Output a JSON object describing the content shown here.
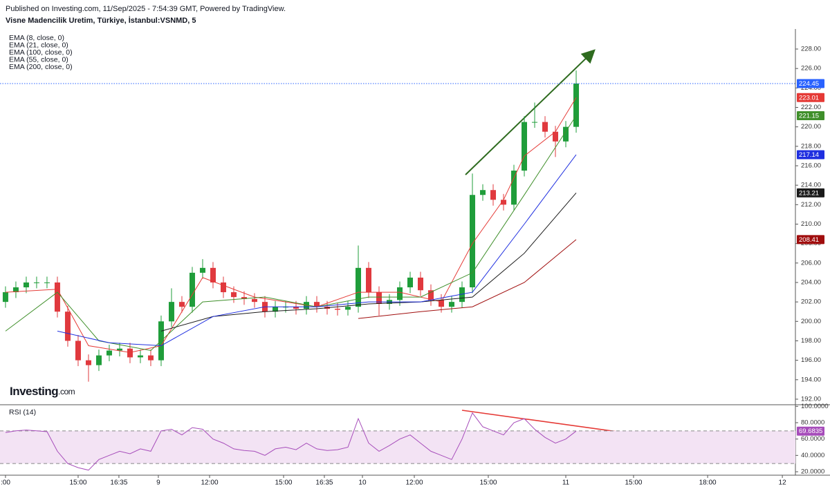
{
  "header": {
    "published": "Published on Investing.com, 11/Sep/2025 - 7:54:39 GMT, Powered by TradingView."
  },
  "chart_data": [
    {
      "type": "candlestick",
      "title": "Visne Madencilik Uretim, Türkiye, İstanbul:VSNMD, 5",
      "logo": "Investing",
      "logo_suffix": ".com",
      "up_color": "#1f9d3a",
      "down_color": "#e0393e",
      "x": [
        0,
        1,
        2,
        3,
        4,
        5,
        6,
        7,
        8,
        9,
        10,
        11,
        12,
        13,
        14,
        15,
        16,
        17,
        18,
        19,
        20,
        21,
        22,
        23,
        24,
        25,
        26,
        27,
        28,
        29,
        30,
        31,
        32,
        33,
        34,
        35,
        36,
        37,
        38,
        39,
        40,
        41,
        42,
        43,
        44,
        45,
        46,
        47,
        48,
        49,
        50,
        51,
        52,
        53,
        54,
        55
      ],
      "open": [
        202,
        203,
        203.5,
        204,
        204,
        204,
        201,
        198,
        196,
        195.5,
        196.5,
        197,
        197.2,
        196.3,
        196.5,
        196,
        200,
        202,
        201.5,
        205,
        205.5,
        204,
        203,
        202.5,
        202.3,
        202,
        201,
        201.5,
        201.5,
        201.3,
        202,
        201.5,
        201.3,
        201.2,
        201.5,
        205.5,
        203,
        201.8,
        202.2,
        203.5,
        204.5,
        203.2,
        202.2,
        201.5,
        202,
        203.5,
        213,
        213.5,
        212.5,
        212,
        215.5,
        220.5,
        220.5,
        219.5,
        218.5,
        220
      ],
      "high": [
        203.6,
        204.1,
        204.6,
        204.6,
        204.6,
        204.6,
        201.6,
        198.6,
        196.6,
        197.1,
        197.6,
        197.8,
        197.8,
        197.1,
        197.1,
        200.6,
        203.4,
        202.6,
        205.6,
        206.4,
        206.1,
        204.6,
        203.6,
        203.1,
        202.9,
        202.6,
        202.1,
        202.1,
        202.1,
        202.6,
        202.6,
        202.1,
        201.9,
        202.1,
        207.8,
        206.1,
        203.6,
        202.8,
        204.1,
        205.1,
        205.1,
        203.8,
        202.8,
        202.6,
        204.1,
        215.2,
        214.1,
        214.1,
        213.1,
        216.1,
        221.1,
        222.5,
        221.1,
        220.1,
        220.6,
        225.8
      ],
      "low": [
        201.4,
        202.4,
        202.9,
        203.4,
        203.4,
        200.4,
        197.4,
        195.4,
        193.8,
        194.9,
        195.9,
        196.4,
        195.7,
        195.7,
        195.4,
        195.4,
        199.4,
        200.9,
        200.9,
        204.4,
        203.4,
        202.4,
        201.9,
        201.7,
        201.4,
        200.4,
        200.4,
        200.9,
        200.7,
        200.7,
        200.9,
        200.7,
        200.6,
        200.6,
        200.9,
        202.4,
        200.6,
        201.2,
        201.6,
        202.9,
        202.6,
        201.6,
        200.9,
        200.9,
        201.4,
        202.9,
        212.4,
        211.9,
        211.4,
        211.4,
        214.9,
        219.9,
        218.9,
        216.9,
        217.9,
        219.4
      ],
      "close": [
        203,
        203.5,
        204,
        204,
        204,
        201,
        198,
        196,
        195.5,
        196.5,
        197,
        197.2,
        196.3,
        196.5,
        196,
        200,
        202,
        201.5,
        205,
        205.5,
        204,
        203,
        202.5,
        202.3,
        202,
        201,
        201.5,
        201.5,
        201.3,
        202,
        201.5,
        201.3,
        201.2,
        201.5,
        205.5,
        203,
        201.8,
        202.2,
        203.5,
        204.5,
        203.2,
        202.2,
        201.5,
        202,
        203.5,
        213,
        213.5,
        212.5,
        212,
        215.5,
        220.5,
        220.5,
        219.5,
        218.5,
        220,
        224.45
      ],
      "last_price": 224.45,
      "last_price_color": "#2962ff",
      "series": [
        {
          "name": "EMA (8, close, 0)",
          "color": "#e53935",
          "x": [
            0,
            5,
            8,
            12,
            15,
            19,
            24,
            30,
            34,
            38,
            42,
            45,
            48,
            50,
            53,
            55
          ],
          "values": [
            203,
            203.3,
            197.5,
            196.8,
            197.5,
            204.5,
            202.5,
            201.5,
            203,
            203,
            202,
            208,
            212.5,
            217,
            219.5,
            223.01
          ]
        },
        {
          "name": "EMA (21, close, 0)",
          "color": "#3f8f2a",
          "x": [
            0,
            5,
            9,
            14,
            19,
            25,
            30,
            35,
            40,
            45,
            50,
            55
          ],
          "values": [
            199,
            203,
            198,
            197,
            202,
            202.5,
            201.5,
            202.5,
            202.5,
            205,
            213,
            221.15
          ]
        },
        {
          "name": "EMA (100, close, 0)",
          "color": "#1a1a1a",
          "x": [
            15,
            20,
            25,
            30,
            35,
            40,
            45,
            50,
            55
          ],
          "values": [
            199,
            200.5,
            201,
            201.3,
            201.8,
            202,
            202.5,
            207,
            213.21
          ]
        },
        {
          "name": "EMA (55, close, 0)",
          "color": "#1f2fe0",
          "x": [
            5,
            10,
            15,
            20,
            25,
            30,
            35,
            40,
            45,
            50,
            55
          ],
          "values": [
            199,
            197.8,
            197.5,
            200.5,
            201.5,
            201.5,
            202,
            202,
            203,
            210,
            217.14
          ]
        },
        {
          "name": "EMA (200, close, 0)",
          "color": "#a00d0d",
          "x": [
            34,
            40,
            45,
            50,
            55
          ],
          "values": [
            200.3,
            201,
            201.5,
            204,
            208.41
          ]
        }
      ],
      "xlim": [
        -0.53,
        76.13
      ],
      "ylim": [
        191.5,
        230.06
      ],
      "yticks": [
        {
          "value": 192,
          "label": "192.00"
        },
        {
          "value": 194,
          "label": "194.00"
        },
        {
          "value": 196,
          "label": "196.00"
        },
        {
          "value": 198,
          "label": "198.00"
        },
        {
          "value": 200,
          "label": "200.00"
        },
        {
          "value": 202,
          "label": "202.00"
        },
        {
          "value": 204,
          "label": "204.00"
        },
        {
          "value": 206,
          "label": "206.00"
        },
        {
          "value": 208,
          "label": "208.00"
        },
        {
          "value": 210,
          "label": "210.00"
        },
        {
          "value": 212,
          "label": "212.00"
        },
        {
          "value": 214,
          "label": "214.00"
        },
        {
          "value": 216,
          "label": "216.00"
        },
        {
          "value": 218,
          "label": "218.00"
        },
        {
          "value": 220,
          "label": "220.00"
        },
        {
          "value": 222,
          "label": "222.00"
        },
        {
          "value": 224,
          "label": "224.00"
        },
        {
          "value": 226,
          "label": "226.00"
        },
        {
          "value": 228,
          "label": "228.00"
        }
      ]
    },
    {
      "type": "line",
      "series": [
        {
          "name": "RSI (14)",
          "color": "#a64cba",
          "values": [
            68,
            70,
            71,
            70,
            69,
            45,
            30,
            25,
            22,
            35,
            40,
            45,
            42,
            48,
            45,
            70,
            72,
            65,
            74,
            72,
            60,
            55,
            48,
            46,
            45,
            40,
            48,
            50,
            47,
            55,
            48,
            46,
            47,
            50,
            85,
            55,
            45,
            52,
            60,
            65,
            55,
            45,
            40,
            35,
            60,
            92,
            75,
            70,
            65,
            80,
            85,
            72,
            62,
            55,
            60,
            69.6835
          ]
        }
      ],
      "x": [
        0,
        1,
        2,
        3,
        4,
        5,
        6,
        7,
        8,
        9,
        10,
        11,
        12,
        13,
        14,
        15,
        16,
        17,
        18,
        19,
        20,
        21,
        22,
        23,
        24,
        25,
        26,
        27,
        28,
        29,
        30,
        31,
        32,
        33,
        34,
        35,
        36,
        37,
        38,
        39,
        40,
        41,
        42,
        43,
        44,
        45,
        46,
        47,
        48,
        49,
        50,
        51,
        52,
        53,
        54,
        55
      ],
      "bands": [
        70,
        30
      ],
      "band_fill": "#f3e3f4",
      "xlim": [
        -0.53,
        76.13
      ],
      "ylim": [
        15.8,
        101.1
      ],
      "yticks": [
        {
          "value": 20,
          "label": "20.0000"
        },
        {
          "value": 40,
          "label": "40.0000"
        },
        {
          "value": 60,
          "label": "60.0000"
        },
        {
          "value": 80,
          "label": "80.0000"
        },
        {
          "value": 100,
          "label": "100.0000"
        }
      ],
      "xticks": [
        {
          "value": 0,
          "label": ":00"
        },
        {
          "value": 7,
          "label": "15:00"
        },
        {
          "value": 10.93,
          "label": "16:35"
        },
        {
          "value": 14.73,
          "label": "9"
        },
        {
          "value": 19.67,
          "label": "12:00"
        },
        {
          "value": 26.8,
          "label": "15:00"
        },
        {
          "value": 30.73,
          "label": "16:35"
        },
        {
          "value": 34.4,
          "label": "10"
        },
        {
          "value": 39.4,
          "label": "12:00"
        },
        {
          "value": 46.53,
          "label": "15:00"
        },
        {
          "value": 54,
          "label": "11"
        },
        {
          "value": 60.53,
          "label": "15:00"
        },
        {
          "value": 67.67,
          "label": "18:00"
        },
        {
          "value": 74.87,
          "label": "12"
        }
      ]
    }
  ]
}
